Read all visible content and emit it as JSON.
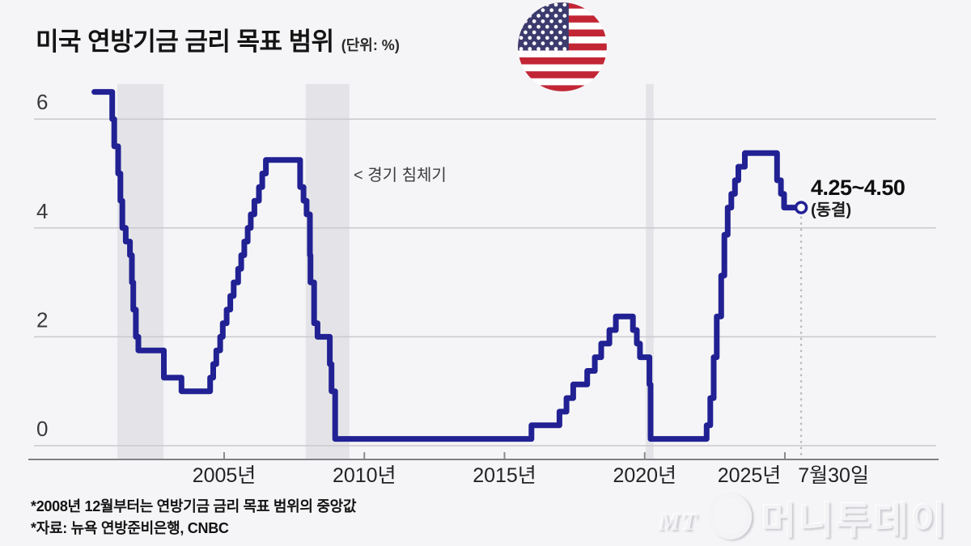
{
  "title": {
    "text": "미국 연방기금 금리 목표 범위",
    "unit": "(단위: %)"
  },
  "annotation": {
    "recession_label": "< 경기 침체기"
  },
  "end_label": {
    "value": "4.25~4.50",
    "status": "(동결)"
  },
  "footnotes": {
    "line1": "*2008년 12월부터는 연방기금 금리 목표 범위의 중앙값",
    "line2": "*자료: 뉴욕 연방준비은행, CNBC"
  },
  "watermark": {
    "mt": "MT",
    "name": "머니투데이"
  },
  "colors": {
    "line": "#212194",
    "recession_band": "#e4e4e8",
    "grid": "#c9c9ce",
    "axis": "#808084",
    "tick": "#8a8a8e",
    "dotted": "#b8b8bd",
    "marker_fill": "#ffffff",
    "flag_red": "#c22635",
    "flag_blue": "#3c3b6e",
    "flag_white": "#ffffff"
  },
  "chart_data": {
    "type": "line",
    "style": "step-after",
    "title": "미국 연방기금 금리 목표 범위",
    "unit": "%",
    "xlabel": "",
    "ylabel": "",
    "grid": "horizontal",
    "ylim": [
      0,
      6.7
    ],
    "xlim": [
      2000.3,
      2026.3
    ],
    "y_ticks": [
      {
        "v": 0,
        "label": "0"
      },
      {
        "v": 2,
        "label": "2"
      },
      {
        "v": 4,
        "label": "4"
      },
      {
        "v": 6,
        "label": "6"
      }
    ],
    "x_ticks": [
      {
        "t": 2005,
        "label": "2005년"
      },
      {
        "t": 2010,
        "label": "2010년"
      },
      {
        "t": 2015,
        "label": "2015년"
      },
      {
        "t": 2020,
        "label": "2020년"
      },
      {
        "t": 2025,
        "label": "2025년",
        "dx": -44
      },
      {
        "t": 2025.58,
        "label": "7월30일",
        "dx": 40,
        "tick": false
      }
    ],
    "recessions": [
      [
        2001.19,
        2002.84
      ],
      [
        2007.91,
        2009.47
      ],
      [
        2020.04,
        2020.32
      ]
    ],
    "series": [
      {
        "name": "미국 연방기금 금리 목표(중앙값)",
        "points": [
          [
            2000.37,
            6.5
          ],
          [
            2001.01,
            6.0
          ],
          [
            2001.08,
            5.5
          ],
          [
            2001.22,
            5.0
          ],
          [
            2001.3,
            4.5
          ],
          [
            2001.37,
            4.0
          ],
          [
            2001.49,
            3.75
          ],
          [
            2001.64,
            3.5
          ],
          [
            2001.71,
            3.0
          ],
          [
            2001.76,
            2.5
          ],
          [
            2001.85,
            2.0
          ],
          [
            2001.94,
            1.75
          ],
          [
            2002.85,
            1.25
          ],
          [
            2003.48,
            1.0
          ],
          [
            2004.5,
            1.25
          ],
          [
            2004.61,
            1.5
          ],
          [
            2004.72,
            1.75
          ],
          [
            2004.86,
            2.0
          ],
          [
            2004.95,
            2.25
          ],
          [
            2005.09,
            2.5
          ],
          [
            2005.22,
            2.75
          ],
          [
            2005.34,
            3.0
          ],
          [
            2005.5,
            3.25
          ],
          [
            2005.61,
            3.5
          ],
          [
            2005.72,
            3.75
          ],
          [
            2005.84,
            4.0
          ],
          [
            2005.95,
            4.25
          ],
          [
            2006.08,
            4.5
          ],
          [
            2006.24,
            4.75
          ],
          [
            2006.36,
            5.0
          ],
          [
            2006.49,
            5.25
          ],
          [
            2007.71,
            4.75
          ],
          [
            2007.83,
            4.5
          ],
          [
            2007.94,
            4.25
          ],
          [
            2008.06,
            3.5
          ],
          [
            2008.08,
            3.0
          ],
          [
            2008.21,
            2.25
          ],
          [
            2008.33,
            2.0
          ],
          [
            2008.77,
            1.5
          ],
          [
            2008.83,
            1.0
          ],
          [
            2008.96,
            0.125
          ],
          [
            2015.96,
            0.375
          ],
          [
            2016.96,
            0.625
          ],
          [
            2017.21,
            0.875
          ],
          [
            2017.45,
            1.125
          ],
          [
            2017.95,
            1.375
          ],
          [
            2018.22,
            1.625
          ],
          [
            2018.45,
            1.875
          ],
          [
            2018.74,
            2.125
          ],
          [
            2018.97,
            2.375
          ],
          [
            2019.58,
            2.125
          ],
          [
            2019.72,
            1.875
          ],
          [
            2019.83,
            1.625
          ],
          [
            2020.17,
            1.125
          ],
          [
            2020.21,
            0.125
          ],
          [
            2022.21,
            0.375
          ],
          [
            2022.34,
            0.875
          ],
          [
            2022.46,
            1.625
          ],
          [
            2022.57,
            2.375
          ],
          [
            2022.73,
            3.125
          ],
          [
            2022.84,
            3.875
          ],
          [
            2022.96,
            4.375
          ],
          [
            2023.09,
            4.625
          ],
          [
            2023.22,
            4.875
          ],
          [
            2023.34,
            5.125
          ],
          [
            2023.57,
            5.375
          ],
          [
            2024.72,
            4.875
          ],
          [
            2024.86,
            4.625
          ],
          [
            2024.97,
            4.375
          ]
        ]
      }
    ],
    "end_point": {
      "t": 2025.58,
      "value": 4.375,
      "label": "7월30일",
      "annotation": "4.25~4.50 (동결)"
    }
  }
}
